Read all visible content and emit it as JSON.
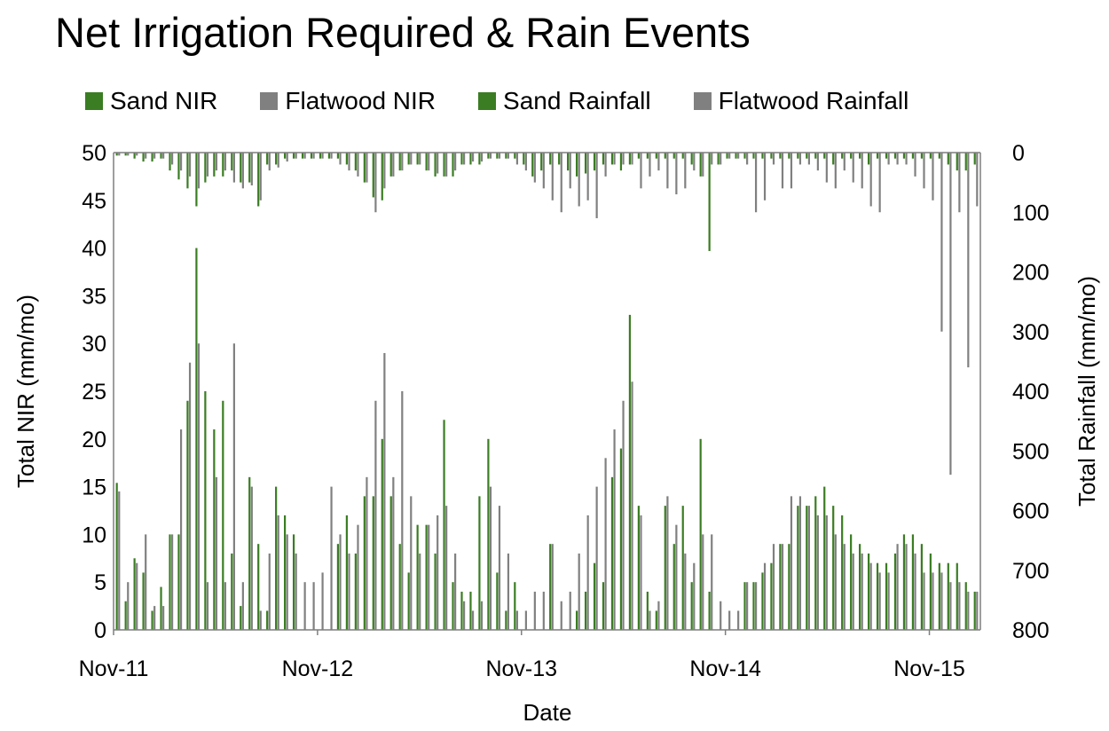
{
  "chart_data": {
    "type": "bar",
    "title": "Net Irrigation Required & Rain Events",
    "xlabel": "Date",
    "ylabel": "Total NIR (mm/mo)",
    "y2label": "Total Rainfall (mm/mo)",
    "ylim": [
      0,
      50
    ],
    "y2lim": [
      800,
      0
    ],
    "y2_inverted": true,
    "yticks": [
      "0",
      "5",
      "10",
      "15",
      "20",
      "25",
      "30",
      "35",
      "40",
      "45",
      "50"
    ],
    "y2ticks": [
      "800",
      "700",
      "600",
      "500",
      "400",
      "300",
      "200",
      "100",
      "0"
    ],
    "x_tick_labels": [
      "Nov-11",
      "Nov-12",
      "Nov-13",
      "Nov-14",
      "Nov-15"
    ],
    "x_tick_months": [
      0,
      12,
      24,
      36,
      48
    ],
    "x_range_months": [
      0,
      51
    ],
    "grid": false,
    "legend_position": "top",
    "series": [
      {
        "name": "Sand NIR",
        "axis": "left",
        "color": "#3a7d22",
        "values": [
          15.4,
          3,
          7.5,
          6,
          2,
          4.5,
          10,
          10,
          24,
          40,
          25,
          21,
          24,
          8,
          2.5,
          16,
          9,
          2,
          15,
          12,
          10,
          0,
          0,
          0,
          0,
          9,
          12,
          8,
          14,
          14,
          20,
          14,
          9,
          6,
          11,
          11,
          8,
          22,
          5,
          4,
          4,
          14,
          20,
          6,
          2,
          5,
          0,
          0,
          0,
          9,
          0,
          0,
          2,
          4,
          7,
          5,
          16,
          19,
          33,
          13,
          4,
          2,
          13,
          9,
          13,
          5,
          20,
          4,
          0,
          0,
          0,
          5,
          5,
          6,
          7,
          9,
          9,
          13,
          13,
          14,
          15,
          13,
          12,
          10,
          9,
          8,
          7,
          7,
          8,
          10,
          10,
          9,
          8,
          7,
          7,
          7,
          5,
          4
        ]
      },
      {
        "name": "Flatwood NIR",
        "axis": "left",
        "color": "#808080",
        "values": [
          14.5,
          5,
          7,
          10,
          2.5,
          2.5,
          10,
          21,
          28,
          30,
          5,
          16,
          5,
          30,
          5,
          15,
          2,
          8,
          12,
          10,
          8,
          5,
          5,
          6,
          15,
          10,
          8,
          11,
          16,
          24,
          29,
          16,
          25,
          14,
          8,
          11,
          12,
          13,
          8,
          3,
          2,
          3,
          15,
          13,
          8,
          2,
          2,
          4,
          4,
          9,
          3,
          4,
          8,
          12,
          15,
          18,
          21,
          24,
          26,
          12,
          2,
          3,
          14,
          11,
          8,
          7,
          10,
          10,
          3,
          2,
          2,
          5,
          5,
          7,
          9,
          9,
          14,
          14,
          13,
          12,
          12,
          10,
          9,
          8,
          8,
          7,
          6,
          6,
          9,
          9,
          8,
          6,
          6,
          6,
          5,
          5,
          4,
          4
        ]
      },
      {
        "name": "Sand Rainfall",
        "axis": "right",
        "color": "#3a7d22",
        "values": [
          5,
          5,
          10,
          15,
          15,
          10,
          30,
          45,
          60,
          90,
          50,
          40,
          40,
          30,
          50,
          50,
          90,
          20,
          20,
          10,
          10,
          10,
          10,
          10,
          10,
          10,
          20,
          30,
          50,
          75,
          80,
          40,
          30,
          20,
          20,
          30,
          40,
          40,
          40,
          20,
          20,
          20,
          10,
          10,
          10,
          10,
          20,
          40,
          30,
          20,
          20,
          30,
          40,
          35,
          30,
          20,
          20,
          30,
          20,
          10,
          10,
          10,
          10,
          10,
          10,
          20,
          40,
          165,
          20,
          10,
          10,
          10,
          10,
          10,
          10,
          10,
          10,
          10,
          10,
          10,
          10,
          20,
          10,
          10,
          10,
          20,
          10,
          10,
          10,
          10,
          10,
          10,
          10,
          10,
          20,
          30,
          30,
          20
        ]
      },
      {
        "name": "Flatwood Rainfall",
        "axis": "right",
        "color": "#808080",
        "values": [
          5,
          5,
          5,
          10,
          10,
          10,
          20,
          30,
          40,
          60,
          40,
          30,
          30,
          50,
          60,
          55,
          80,
          30,
          25,
          15,
          10,
          10,
          10,
          10,
          10,
          20,
          30,
          40,
          50,
          100,
          60,
          40,
          30,
          20,
          20,
          30,
          35,
          40,
          30,
          20,
          15,
          15,
          10,
          10,
          10,
          20,
          30,
          50,
          60,
          80,
          100,
          60,
          90,
          80,
          110,
          40,
          20,
          20,
          20,
          60,
          40,
          30,
          60,
          70,
          60,
          30,
          40,
          20,
          20,
          10,
          10,
          20,
          100,
          80,
          20,
          60,
          60,
          20,
          20,
          30,
          50,
          60,
          30,
          50,
          60,
          90,
          100,
          20,
          20,
          20,
          40,
          60,
          80,
          300,
          540,
          100,
          360,
          90
        ]
      }
    ]
  }
}
